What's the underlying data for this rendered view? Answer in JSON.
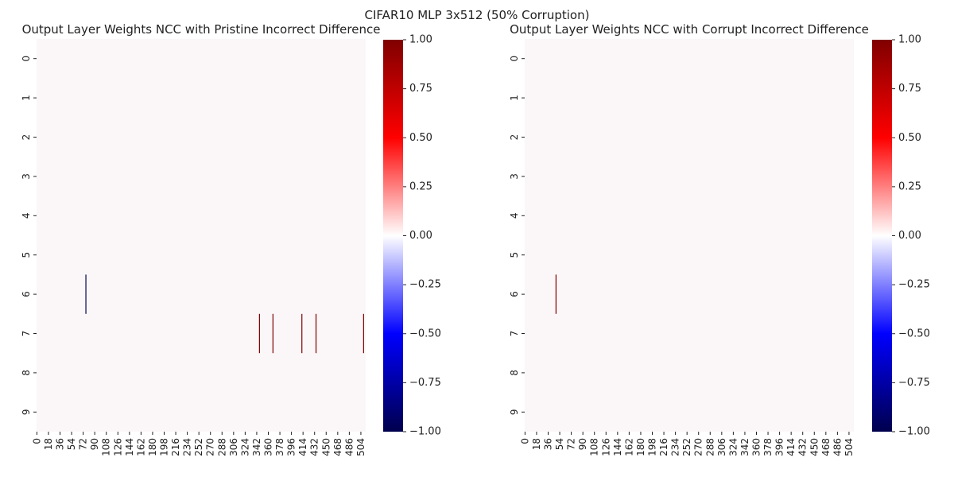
{
  "suptitle": "CIFAR10 MLP 3x512 (50% Corruption)",
  "chart_data": [
    {
      "type": "heatmap",
      "title": "Output Layer Weights NCC with Pristine Incorrect Difference",
      "xlabel": "",
      "ylabel": "",
      "rows": [
        "0",
        "1",
        "2",
        "3",
        "4",
        "5",
        "6",
        "7",
        "8",
        "9"
      ],
      "x_tick_labels": [
        "0",
        "18",
        "36",
        "54",
        "72",
        "90",
        "108",
        "126",
        "144",
        "162",
        "180",
        "198",
        "216",
        "234",
        "252",
        "270",
        "288",
        "306",
        "324",
        "342",
        "360",
        "378",
        "396",
        "414",
        "432",
        "450",
        "468",
        "486",
        "504"
      ],
      "n_columns": 512,
      "vmin": -1.0,
      "vmax": 1.0,
      "colormap": "seismic",
      "background_value": 0.0,
      "nonzero_cells": [
        {
          "row": 6,
          "col": 76,
          "value": -1.0
        },
        {
          "row": 7,
          "col": 346,
          "value": 1.0
        },
        {
          "row": 7,
          "col": 367,
          "value": 1.0
        },
        {
          "row": 7,
          "col": 412,
          "value": 1.0
        },
        {
          "row": 7,
          "col": 434,
          "value": 1.0
        },
        {
          "row": 7,
          "col": 508,
          "value": 1.0
        }
      ],
      "colorbar_ticks": [
        "1.00",
        "0.75",
        "0.50",
        "0.25",
        "0.00",
        "−0.25",
        "−0.50",
        "−0.75",
        "−1.00"
      ]
    },
    {
      "type": "heatmap",
      "title": "Output Layer Weights NCC with Corrupt Incorrect Difference",
      "xlabel": "",
      "ylabel": "",
      "rows": [
        "0",
        "1",
        "2",
        "3",
        "4",
        "5",
        "6",
        "7",
        "8",
        "9"
      ],
      "x_tick_labels": [
        "0",
        "18",
        "36",
        "54",
        "72",
        "90",
        "108",
        "126",
        "144",
        "162",
        "180",
        "198",
        "216",
        "234",
        "252",
        "270",
        "288",
        "306",
        "324",
        "342",
        "360",
        "378",
        "396",
        "414",
        "432",
        "450",
        "468",
        "486",
        "504"
      ],
      "n_columns": 512,
      "vmin": -1.0,
      "vmax": 1.0,
      "colormap": "seismic",
      "background_value": 0.0,
      "nonzero_cells": [
        {
          "row": 6,
          "col": 48,
          "value": 1.0
        }
      ],
      "colorbar_ticks": [
        "1.00",
        "0.75",
        "0.50",
        "0.25",
        "0.00",
        "−0.25",
        "−0.50",
        "−0.75",
        "−1.00"
      ]
    }
  ]
}
